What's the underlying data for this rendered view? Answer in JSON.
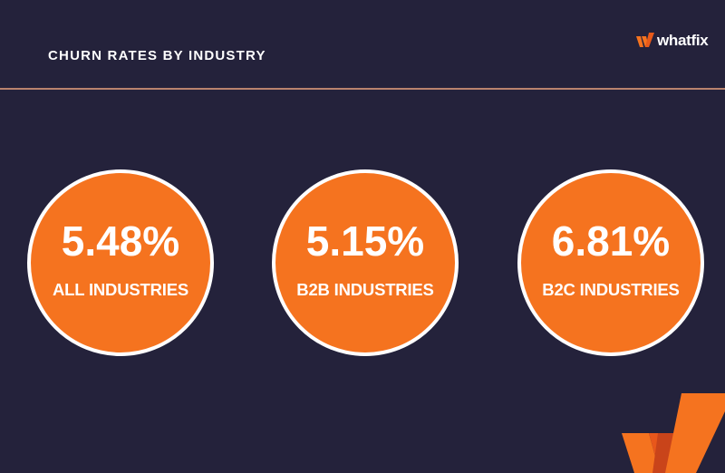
{
  "header": {
    "title": "CHURN RATES BY INDUSTRY",
    "logo_text": "whatfix",
    "logo_icon": "whatfix-logo-icon"
  },
  "stats": [
    {
      "value": "5.48%",
      "label": "ALL INDUSTRIES"
    },
    {
      "value": "5.15%",
      "label": "B2B INDUSTRIES"
    },
    {
      "value": "6.81%",
      "label": "B2C INDUSTRIES"
    }
  ],
  "colors": {
    "background": "#24223b",
    "accent": "#f5731f",
    "divider": "#b9836e",
    "text": "#ffffff"
  }
}
